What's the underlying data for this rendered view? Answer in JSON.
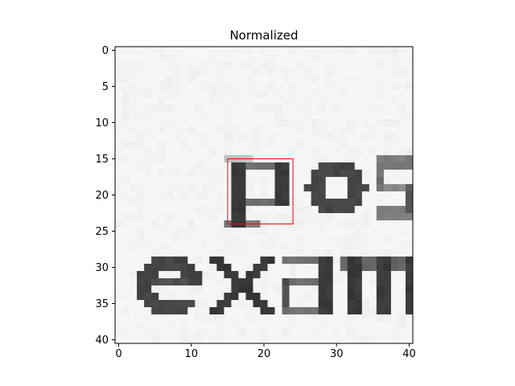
{
  "chart_data": {
    "type": "heatmap",
    "title": "Normalized",
    "xlabel": "",
    "ylabel": "",
    "rows": 41,
    "cols": 41,
    "xlim": [
      -0.5,
      40.5
    ],
    "ylim": [
      40.5,
      -0.5
    ],
    "x_ticks": [
      0,
      10,
      20,
      30,
      40
    ],
    "y_ticks": [
      0,
      5,
      10,
      15,
      20,
      25,
      30,
      35,
      40
    ],
    "colormap": "grayscale",
    "grid": false,
    "image_content": "grayscale crop of scanned text: the letters p o s on the upper line and e x a m on the lower line",
    "highlight_box": {
      "x0": 15,
      "y0": 15,
      "x1": 24,
      "y1": 24,
      "color": "#ff0000"
    }
  }
}
